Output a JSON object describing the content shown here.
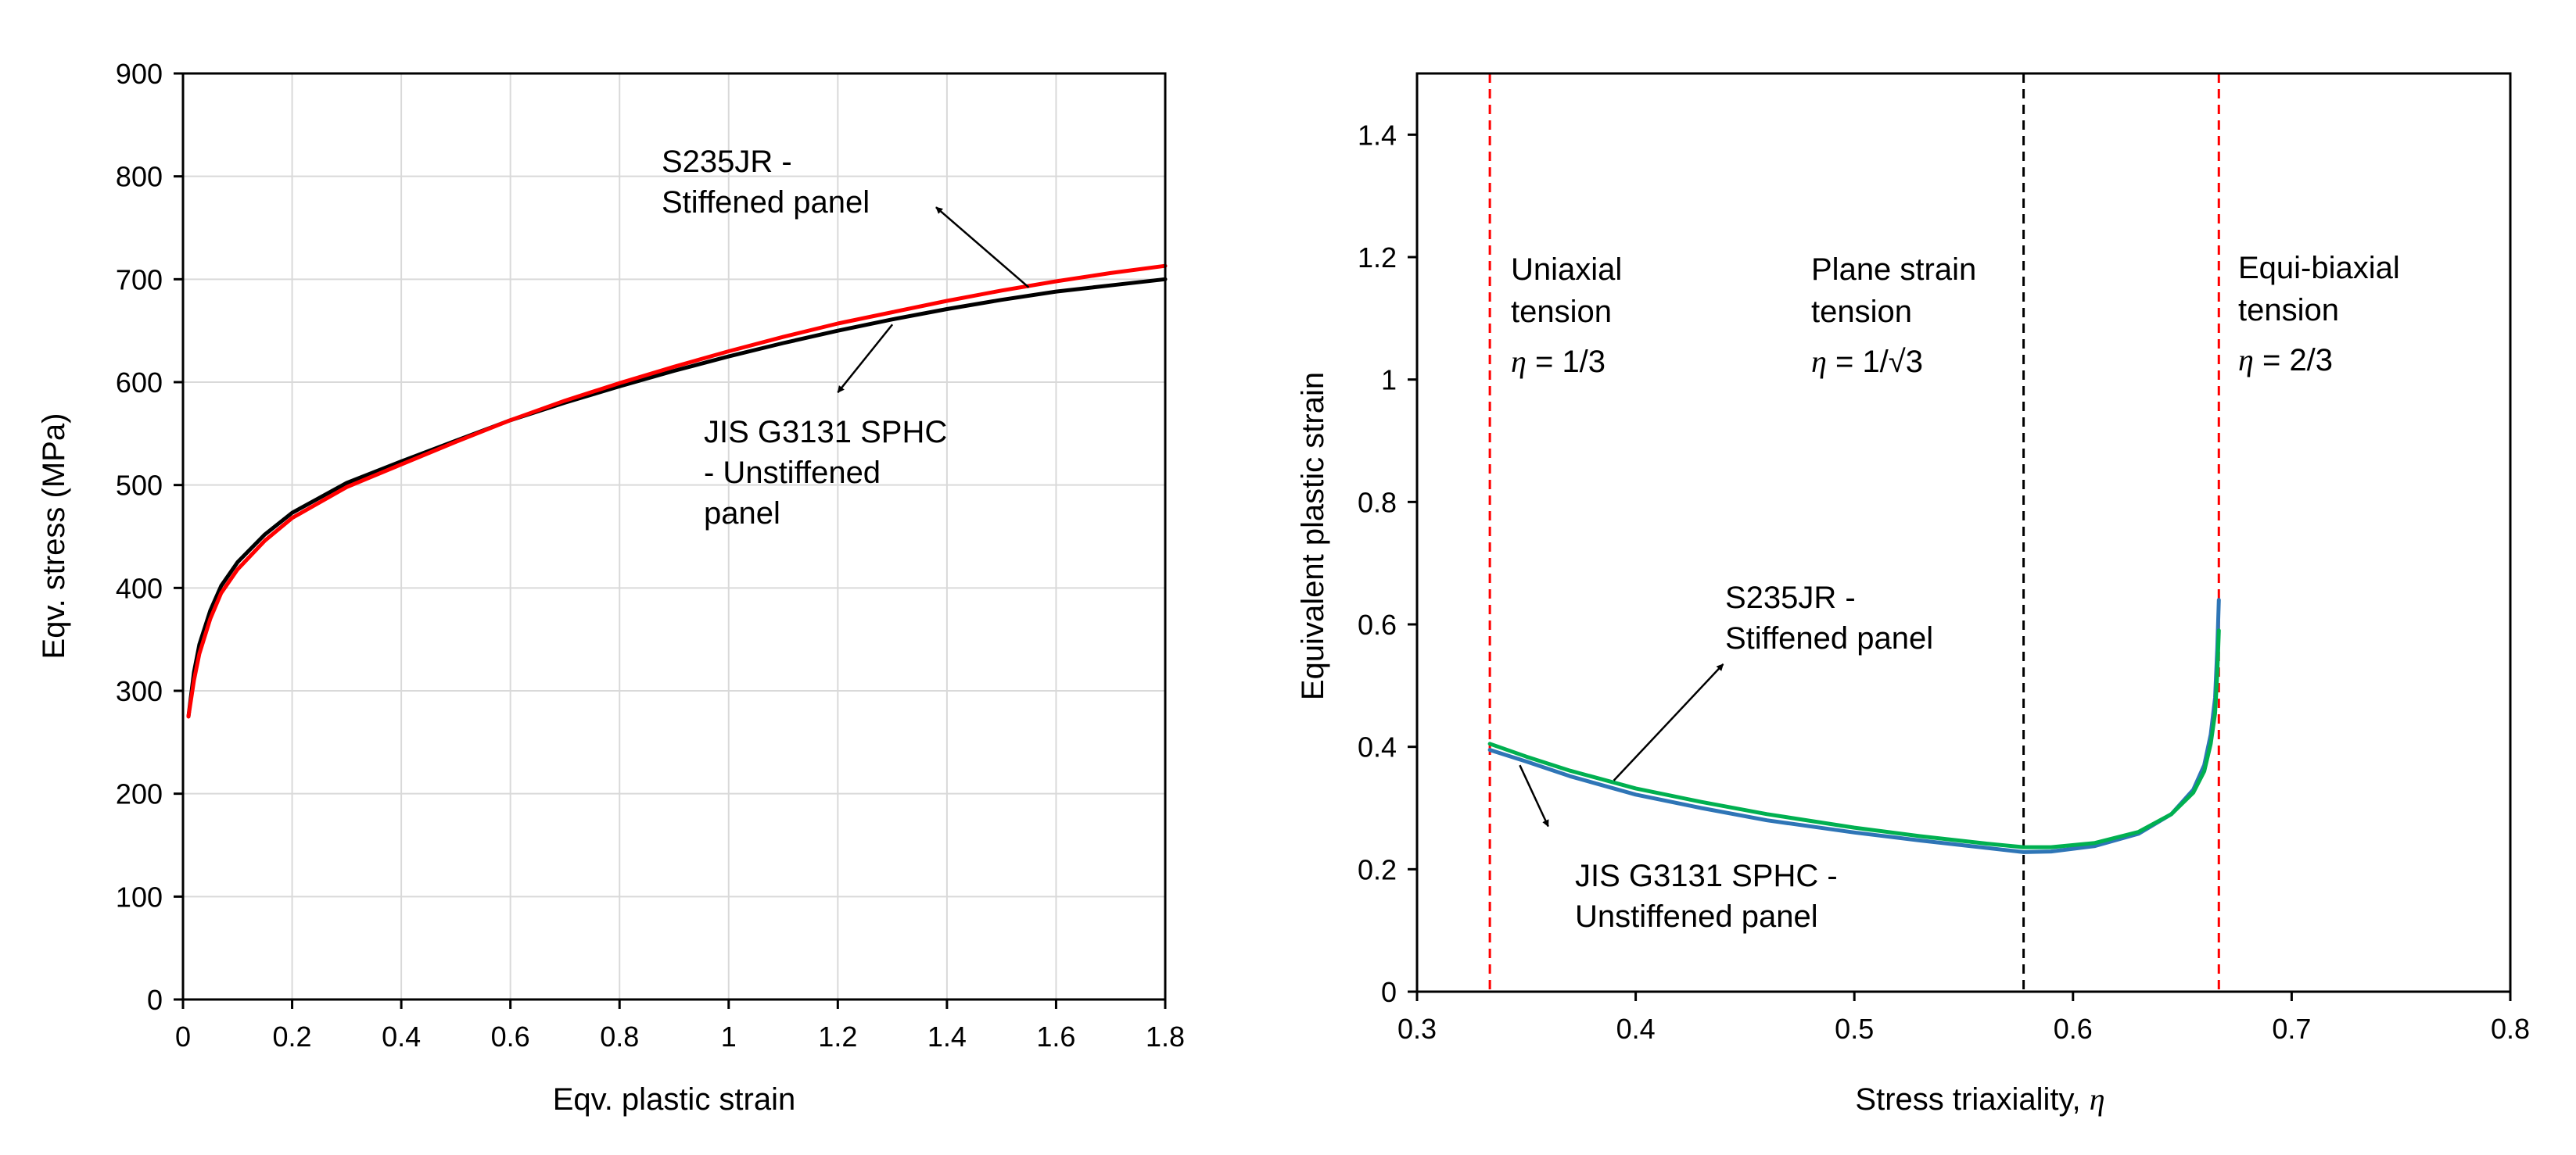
{
  "chart_data": [
    {
      "id": "stress-strain",
      "type": "line",
      "xlabel": "Eqv. plastic strain",
      "ylabel": "Eqv. stress (MPa)",
      "xlim": [
        0,
        1.8
      ],
      "ylim": [
        0,
        900
      ],
      "xticks": [
        0,
        0.2,
        0.4,
        0.6,
        0.8,
        1,
        1.2,
        1.4,
        1.6,
        1.8
      ],
      "xtick_labels": [
        "0",
        "0.2",
        "0.4",
        "0.6",
        "0.8",
        "1",
        "1.2",
        "1.4",
        "1.6",
        "1.8"
      ],
      "yticks": [
        0,
        100,
        200,
        300,
        400,
        500,
        600,
        700,
        800,
        900
      ],
      "ytick_labels": [
        "0",
        "100",
        "200",
        "300",
        "400",
        "500",
        "600",
        "700",
        "800",
        "900"
      ],
      "grid": true,
      "series": [
        {
          "name": "JIS G3131 SPHC - Unstiffened panel",
          "color": "#000000",
          "x": [
            0.01,
            0.02,
            0.03,
            0.05,
            0.07,
            0.1,
            0.15,
            0.2,
            0.3,
            0.4,
            0.5,
            0.6,
            0.7,
            0.8,
            0.9,
            1.0,
            1.1,
            1.2,
            1.3,
            1.4,
            1.5,
            1.6,
            1.7,
            1.8
          ],
          "y": [
            275,
            318,
            345,
            378,
            402,
            425,
            452,
            473,
            502,
            523,
            543,
            563,
            580,
            596,
            611,
            625,
            638,
            650,
            661,
            671,
            680,
            688,
            694,
            700
          ]
        },
        {
          "name": "S235JR - Stiffened panel",
          "color": "#ff0000",
          "x": [
            0.01,
            0.02,
            0.03,
            0.05,
            0.07,
            0.1,
            0.15,
            0.2,
            0.3,
            0.4,
            0.5,
            0.6,
            0.7,
            0.8,
            0.9,
            1.0,
            1.1,
            1.2,
            1.3,
            1.4,
            1.5,
            1.6,
            1.7,
            1.8
          ],
          "y": [
            275,
            310,
            336,
            370,
            395,
            418,
            446,
            468,
            498,
            520,
            542,
            563,
            582,
            599,
            615,
            630,
            644,
            657,
            668,
            679,
            689,
            698,
            706,
            713
          ]
        }
      ],
      "annotations": [
        {
          "lines": [
            "S235JR -",
            "Stiffened panel"
          ],
          "points_to": [
            1.38,
            770
          ],
          "arrow_from": [
            1.55,
            692
          ]
        },
        {
          "lines": [
            "JIS G3131 SPHC",
            "- Unstiffened",
            "panel"
          ],
          "points_to": [
            1.2,
            590
          ],
          "arrow_from": [
            1.3,
            656
          ]
        }
      ]
    },
    {
      "id": "fracture-locus",
      "type": "line",
      "xlabel": "Stress triaxiality, ",
      "xlabel_symbol": "η",
      "ylabel": "Equivalent plastic strain",
      "xlim": [
        0.3,
        0.8
      ],
      "ylim": [
        0,
        1.5
      ],
      "xticks": [
        0.3,
        0.4,
        0.5,
        0.6,
        0.7,
        0.8
      ],
      "xtick_labels": [
        "0.3",
        "0.4",
        "0.5",
        "0.6",
        "0.7",
        "0.8"
      ],
      "yticks": [
        0,
        0.2,
        0.4,
        0.6,
        0.8,
        1.0,
        1.2,
        1.4
      ],
      "ytick_labels": [
        "0",
        "0.2",
        "0.4",
        "0.6",
        "0.8",
        "1",
        "1.2",
        "1.4"
      ],
      "grid": false,
      "series": [
        {
          "name": "JIS G3131 SPHC - Unstiffened panel",
          "color": "#2e75b6",
          "x": [
            0.3333,
            0.35,
            0.37,
            0.4,
            0.43,
            0.46,
            0.5,
            0.53,
            0.56,
            0.5774,
            0.59,
            0.61,
            0.63,
            0.645,
            0.655,
            0.66,
            0.663,
            0.665,
            0.666,
            0.6667
          ],
          "y": [
            0.395,
            0.376,
            0.352,
            0.322,
            0.3,
            0.28,
            0.26,
            0.247,
            0.235,
            0.228,
            0.229,
            0.238,
            0.258,
            0.29,
            0.33,
            0.37,
            0.42,
            0.48,
            0.56,
            0.64
          ]
        },
        {
          "name": "S235JR - Stiffened panel",
          "color": "#00b050",
          "x": [
            0.3333,
            0.35,
            0.37,
            0.4,
            0.43,
            0.46,
            0.5,
            0.53,
            0.56,
            0.5774,
            0.59,
            0.61,
            0.63,
            0.645,
            0.655,
            0.66,
            0.663,
            0.665,
            0.666,
            0.6667
          ],
          "y": [
            0.405,
            0.384,
            0.361,
            0.332,
            0.31,
            0.29,
            0.268,
            0.254,
            0.242,
            0.236,
            0.236,
            0.243,
            0.261,
            0.29,
            0.325,
            0.36,
            0.405,
            0.455,
            0.52,
            0.59
          ]
        }
      ],
      "vlines": [
        {
          "x": 0.3333,
          "color": "#ff0000",
          "style": "dashed"
        },
        {
          "x": 0.5774,
          "color": "#000000",
          "style": "dashed"
        },
        {
          "x": 0.6667,
          "color": "#ff0000",
          "style": "dashed"
        }
      ],
      "region_labels": [
        {
          "id": "uniaxial",
          "lines": [
            "Uniaxial",
            "tension"
          ],
          "eta_value": "1/3"
        },
        {
          "id": "plane-strain",
          "lines": [
            "Plane strain",
            "tension"
          ],
          "eta_value": "1/√3"
        },
        {
          "id": "equibiaxial",
          "lines": [
            "Equi-biaxial",
            "tension"
          ],
          "eta_value": "2/3"
        }
      ],
      "eta_symbol": "η",
      "annotations": [
        {
          "lines": [
            "S235JR -",
            "Stiffened panel"
          ],
          "points_to": [
            0.44,
            0.535
          ],
          "arrow_from": [
            0.39,
            0.345
          ]
        },
        {
          "lines": [
            "JIS G3131 SPHC -",
            "Unstiffened panel"
          ],
          "points_to": [
            0.36,
            0.27
          ],
          "arrow_from": [
            0.347,
            0.37
          ]
        }
      ]
    }
  ]
}
